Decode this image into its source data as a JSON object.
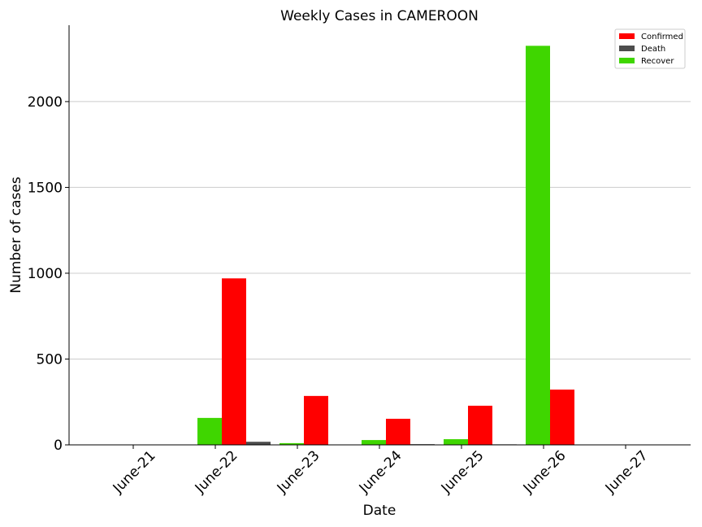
{
  "chart_data": {
    "type": "bar",
    "title": "Weekly Cases in CAMEROON",
    "xlabel": "Date",
    "ylabel": "Number of cases",
    "categories": [
      "June-21",
      "June-22",
      "June-23",
      "June-24",
      "June-25",
      "June-26",
      "June-27"
    ],
    "series": [
      {
        "name": "Recover",
        "color": "#3fd600",
        "values": [
          0,
          157,
          10,
          28,
          33,
          2325,
          0
        ]
      },
      {
        "name": "Confirmed",
        "color": "#ff0000",
        "values": [
          0,
          970,
          285,
          152,
          228,
          322,
          0
        ]
      },
      {
        "name": "Death",
        "color": "#4d4d4d",
        "values": [
          0,
          18,
          0,
          4,
          3,
          0,
          0
        ]
      }
    ],
    "legend_order": [
      "Confirmed",
      "Death",
      "Recover"
    ],
    "yticks": [
      0,
      500,
      1000,
      1500,
      2000
    ],
    "ylim": [
      0,
      2445
    ],
    "grid": "horizontal",
    "legend_position": "top-right"
  }
}
